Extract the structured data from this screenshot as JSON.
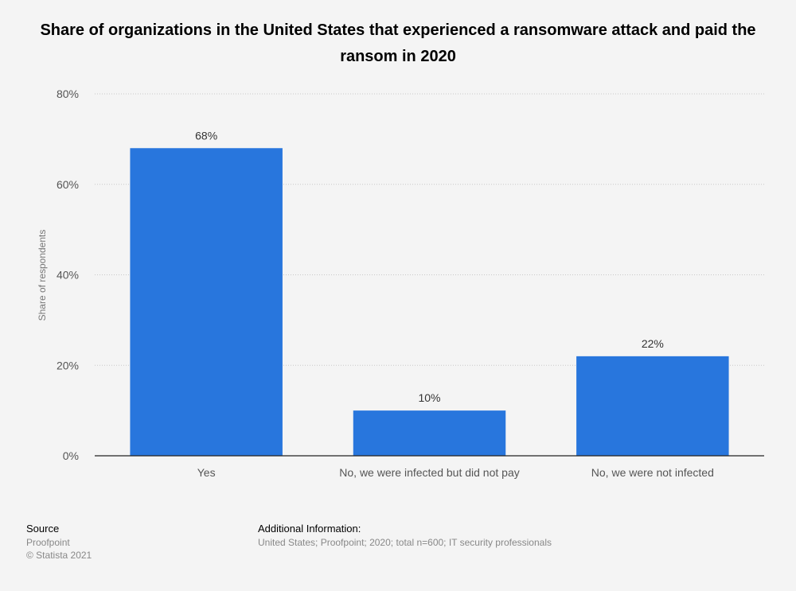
{
  "title": "Share of organizations in the United States that experienced a ransomware attack and paid the ransom in 2020",
  "chart_data": {
    "type": "bar",
    "categories": [
      "Yes",
      "No, we were infected but did not pay",
      "No, we were not infected"
    ],
    "values": [
      68,
      10,
      22
    ],
    "value_labels": [
      "68%",
      "10%",
      "22%"
    ],
    "ylabel": "Share of respondents",
    "ylim": [
      0,
      80
    ],
    "yticks": [
      0,
      20,
      40,
      60,
      80
    ],
    "ytick_labels": [
      "0%",
      "20%",
      "40%",
      "60%",
      "80%"
    ],
    "grid": true,
    "bar_color": "#2876dd"
  },
  "footer": {
    "source_heading": "Source",
    "source_name": "Proofpoint",
    "copyright": "© Statista 2021",
    "additional_heading": "Additional Information:",
    "additional_text": "United States; Proofpoint; 2020; total n=600; IT security professionals"
  }
}
